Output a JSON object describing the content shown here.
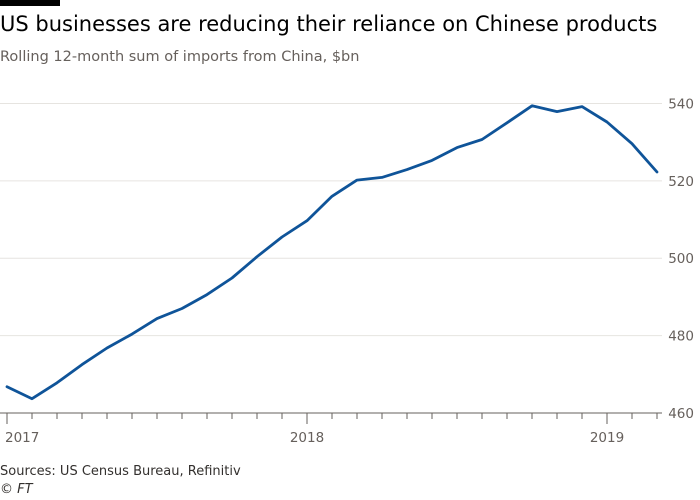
{
  "header": {
    "title": "US businesses are reducing their reliance on Chinese products",
    "subtitle": "Rolling 12-month sum of imports from China, $bn"
  },
  "footer": {
    "source": "Sources: US Census Bureau, Refinitiv",
    "credit": "© FT"
  },
  "colors": {
    "line": "#0f5499",
    "grid": "#e6e4e0",
    "axis": "#66605c",
    "text": "#33302e"
  },
  "chart_data": {
    "type": "line",
    "title": "US businesses are reducing their reliance on Chinese products",
    "subtitle": "Rolling 12-month sum of imports from China, $bn",
    "xlabel": "",
    "ylabel": "",
    "ylim": [
      460,
      544
    ],
    "y_ticks": [
      460,
      480,
      500,
      520,
      540
    ],
    "y_tick_labels": [
      "460",
      "480",
      "500",
      "520",
      "540"
    ],
    "y_axis_side": "right",
    "x_tick_labels": [
      {
        "label": "2017",
        "index": 0
      },
      {
        "label": "2018",
        "index": 12
      },
      {
        "label": "2019",
        "index": 24
      }
    ],
    "grid": true,
    "legend": "none",
    "series": [
      {
        "x": [
          "2017-01",
          "2017-02",
          "2017-03",
          "2017-04",
          "2017-05",
          "2017-06",
          "2017-07",
          "2017-08",
          "2017-09",
          "2017-10",
          "2017-11",
          "2017-12",
          "2018-01",
          "2018-02",
          "2018-03",
          "2018-04",
          "2018-05",
          "2018-06",
          "2018-07",
          "2018-08",
          "2018-09",
          "2018-10",
          "2018-11",
          "2018-12",
          "2019-01",
          "2019-02",
          "2019-03"
        ],
        "values": [
          466.8,
          463.7,
          467.8,
          472.5,
          476.8,
          480.4,
          484.4,
          487.0,
          490.6,
          494.9,
          500.4,
          505.5,
          509.7,
          516.0,
          520.2,
          520.9,
          522.9,
          525.3,
          528.6,
          530.7,
          535.0,
          539.4,
          537.9,
          539.2,
          535.2,
          529.6,
          522.3
        ]
      }
    ]
  }
}
